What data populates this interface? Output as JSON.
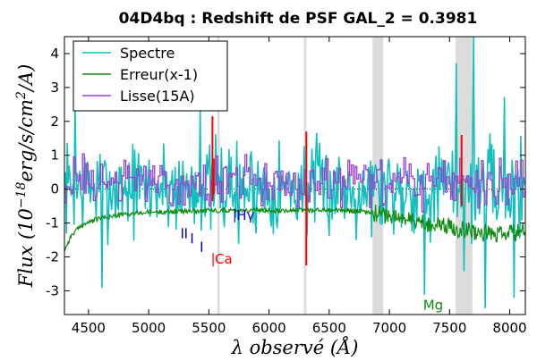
{
  "chart_data": {
    "type": "line",
    "title": "04D4bq : Redshift de PSF GAL_2 = 0.3981",
    "xlabel": "λ observé (Å)",
    "ylabel": "Flux (10^-18 erg/s/cm²/A)",
    "ylabel_parts": {
      "pre": "Flux (10",
      "exp": "−18",
      "mid": "erg/s/cm",
      "exp2": "2",
      "post": "/A)"
    },
    "xlim": [
      4300,
      8130
    ],
    "ylim": [
      -3.7,
      4.5
    ],
    "x_ticks": [
      4500,
      5000,
      5500,
      6000,
      6500,
      7000,
      7500,
      8000
    ],
    "y_ticks": [
      -3,
      -2,
      -1,
      0,
      1,
      2,
      3,
      4
    ],
    "x_tick_labels": [
      "4500",
      "5000",
      "5500",
      "6000",
      "6500",
      "7000",
      "7500",
      "8000"
    ],
    "y_tick_labels": [
      "-3",
      "-2",
      "-1",
      "0",
      "1",
      "2",
      "3",
      "4"
    ],
    "grid": false,
    "legend_position": "top-left",
    "shaded_regions": [
      {
        "x0": 5570,
        "x1": 5590
      },
      {
        "x0": 6290,
        "x1": 6310
      },
      {
        "x0": 6860,
        "x1": 6950
      },
      {
        "x0": 7550,
        "x1": 7690
      }
    ],
    "series": [
      {
        "name": "Spectre",
        "color": "#11bfbf",
        "noise_amplitude": 1.1,
        "seed": 7,
        "spikes": [
          {
            "x": 7700,
            "y": 4.5
          },
          {
            "x": 7560,
            "y": 3.7
          },
          {
            "x": 4390,
            "y": 2.6
          },
          {
            "x": 7290,
            "y": -3.1
          },
          {
            "x": 4610,
            "y": -2.9
          },
          {
            "x": 7800,
            "y": -3.5
          },
          {
            "x": 5430,
            "y": 2.4
          },
          {
            "x": 7960,
            "y": 2.7
          },
          {
            "x": 8040,
            "y": -3.2
          },
          {
            "x": 7620,
            "y": -2.4
          },
          {
            "x": 5750,
            "y": -1.6
          }
        ]
      },
      {
        "name": "Erreur(x-1)",
        "color": "#108a10",
        "points": [
          [
            4300,
            -1.8
          ],
          [
            4360,
            -1.35
          ],
          [
            4450,
            -1.05
          ],
          [
            4600,
            -0.85
          ],
          [
            4800,
            -0.75
          ],
          [
            5000,
            -0.68
          ],
          [
            5300,
            -0.65
          ],
          [
            5600,
            -0.62
          ],
          [
            6000,
            -0.62
          ],
          [
            6400,
            -0.62
          ],
          [
            6700,
            -0.63
          ],
          [
            6900,
            -0.72
          ],
          [
            7100,
            -0.85
          ],
          [
            7300,
            -1.0
          ],
          [
            7500,
            -1.1
          ],
          [
            7700,
            -1.25
          ],
          [
            7900,
            -1.35
          ],
          [
            8130,
            -1.25
          ]
        ],
        "noise_amplitude": 0.12
      },
      {
        "name": "Lisse(15A)",
        "color": "#9a40cf",
        "step_width": 15,
        "amplitude": 0.45
      }
    ],
    "emission_markers": [
      {
        "x": 5530,
        "y_top": 2.15,
        "y_bottom": -0.35,
        "color": "#ff0000"
      },
      {
        "x": 5540,
        "y_top": 0.9,
        "y_bottom": -0.15,
        "color": "#ff0000"
      },
      {
        "x": 6310,
        "y_top": 1.7,
        "y_bottom": -2.25,
        "color": "#ff0000"
      },
      {
        "x": 7600,
        "y_top": 1.6,
        "y_bottom": -0.5,
        "color": "#ff0000"
      }
    ],
    "annotations": [
      {
        "text": "Ca",
        "x": 5550,
        "y": -2.2,
        "color": "#ff0000",
        "tick": true
      },
      {
        "text": "Hγ",
        "x": 5730,
        "y": -0.9,
        "color": "#0000cc",
        "tick": true
      },
      {
        "text": "Mg",
        "x": 7280,
        "y": -3.55,
        "color": "#108a10",
        "tick": false
      }
    ],
    "blue_ticks": [
      {
        "x": 5280,
        "y_top": -1.15,
        "y_bottom": -1.45
      },
      {
        "x": 5310,
        "y_top": -1.15,
        "y_bottom": -1.45
      },
      {
        "x": 5360,
        "y_top": -1.3,
        "y_bottom": -1.6
      },
      {
        "x": 5440,
        "y_top": -1.55,
        "y_bottom": -1.85
      }
    ]
  }
}
